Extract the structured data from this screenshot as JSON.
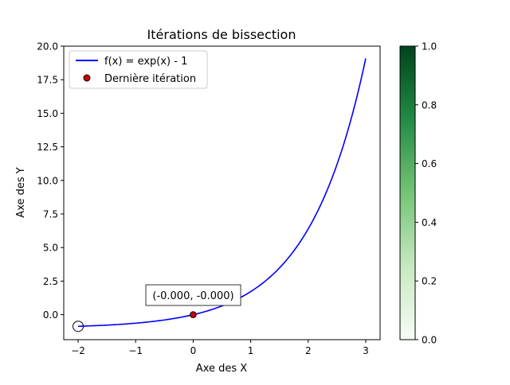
{
  "chart_data": {
    "type": "line",
    "title": "Itérations de bissection",
    "xlabel": "Axe des X",
    "ylabel": "Axe des Y",
    "xlim": [
      -2.25,
      3.25
    ],
    "ylim": [
      -1.86,
      20.0
    ],
    "xticks": [
      -2,
      -1,
      0,
      1,
      2,
      3
    ],
    "xtick_labels": [
      "−2",
      "−1",
      "0",
      "1",
      "2",
      "3"
    ],
    "yticks": [
      0.0,
      2.5,
      5.0,
      7.5,
      10.0,
      12.5,
      15.0,
      17.5,
      20.0
    ],
    "ytick_labels": [
      "0.0",
      "2.5",
      "5.0",
      "7.5",
      "10.0",
      "12.5",
      "15.0",
      "17.5",
      "20.0"
    ],
    "grid": false,
    "legend_position": "upper-left",
    "series": [
      {
        "name": "f(x) = exp(x) - 1",
        "function": "exp(x) - 1",
        "x_range": [
          -2,
          3
        ],
        "color": "#0000ff"
      }
    ],
    "points": [
      {
        "name": "Dernière itération",
        "x": 0.0,
        "y": 0.0,
        "color": "#cc0000",
        "edge": "#000000"
      }
    ],
    "start_marker": {
      "x": -2.0,
      "y": -0.865,
      "style": "hollow-circle"
    },
    "annotation": {
      "text": "(-0.000, -0.000)",
      "x": 0.0,
      "y": 0.0
    },
    "colorbar": {
      "range": [
        0.0,
        1.0
      ],
      "ticks": [
        "0.0",
        "0.2",
        "0.4",
        "0.6",
        "0.8",
        "1.0"
      ],
      "colors": [
        "#f7fcf5",
        "#c7e9c0",
        "#74c476",
        "#238b45",
        "#00441b"
      ]
    }
  }
}
